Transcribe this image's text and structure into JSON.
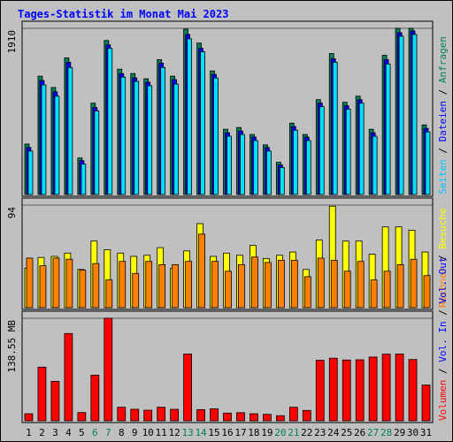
{
  "chart_data": {
    "type": "bar",
    "title": "Tages-Statistik im Monat Mai 2023",
    "categories": [
      "1",
      "2",
      "3",
      "4",
      "5",
      "6",
      "7",
      "8",
      "9",
      "10",
      "11",
      "12",
      "13",
      "14",
      "15",
      "16",
      "17",
      "18",
      "19",
      "20",
      "21",
      "22",
      "23",
      "24",
      "25",
      "26",
      "27",
      "28",
      "29",
      "30",
      "31"
    ],
    "weekend_days": [
      "6",
      "7",
      "13",
      "14",
      "20",
      "21",
      "27",
      "28"
    ],
    "panels": [
      {
        "id": "requests",
        "ytick_label": "1910",
        "ylim": [
          0,
          1910
        ],
        "right_labels": [
          {
            "text": "Anfragen",
            "color": "#00805c"
          },
          {
            "text": "Dateien",
            "color": "#0000ff"
          },
          {
            "text": "Seiten",
            "color": "#00c0ff"
          }
        ],
        "series": [
          {
            "name": "Anfragen",
            "color": "#00805c",
            "values": [
              580,
              1360,
              1230,
              1570,
              420,
              1050,
              1770,
              1440,
              1390,
              1330,
              1550,
              1360,
              1900,
              1740,
              1420,
              750,
              770,
              690,
              570,
              370,
              820,
              690,
              1090,
              1620,
              1060,
              1130,
              750,
              1600,
              1910,
              1910,
              800
            ]
          },
          {
            "name": "Dateien",
            "color": "#0000ff",
            "values": [
              560,
              1330,
              1200,
              1540,
              410,
              1020,
              1740,
              1410,
              1360,
              1310,
              1530,
              1340,
              1860,
              1700,
              1400,
              730,
              750,
              680,
              560,
              360,
              800,
              680,
              1070,
              1580,
              1040,
              1110,
              730,
              1570,
              1880,
              1900,
              780
            ]
          },
          {
            "name": "Seiten",
            "color": "#00e0ff",
            "values": [
              540,
              1300,
              1170,
              1500,
              390,
              1000,
              1720,
              1390,
              1340,
              1290,
              1500,
              1310,
              1830,
              1680,
              1380,
              710,
              730,
              660,
              540,
              350,
              780,
              660,
              1050,
              1560,
              1020,
              1090,
              710,
              1540,
              1860,
              1880,
              760
            ]
          }
        ]
      },
      {
        "id": "visits",
        "ytick_label": "94",
        "ylim": [
          0,
          94
        ],
        "right_labels": [
          {
            "text": "Besuche",
            "color": "#ffff00"
          },
          {
            "text": "Rechner",
            "color": "#ff8000"
          }
        ],
        "series": [
          {
            "name": "Besuche",
            "color": "#ffff00",
            "values": [
              36,
              46,
              47,
              50,
              35,
              61,
              53,
              50,
              47,
              48,
              55,
              36,
              52,
              77,
              47,
              50,
              48,
              57,
              45,
              48,
              51,
              35,
              62,
              93,
              61,
              61,
              49,
              74,
              74,
              71,
              51
            ]
          },
          {
            "name": "Rechner",
            "color": "#ff8000",
            "values": [
              47,
              40,
              47,
              46,
              36,
              42,
              27,
              44,
              33,
              44,
              41,
              41,
              44,
              69,
              44,
              35,
              41,
              48,
              43,
              45,
              45,
              30,
              47,
              45,
              35,
              44,
              27,
              35,
              41,
              46,
              31
            ]
          }
        ]
      },
      {
        "id": "volume",
        "ytick_label": "138.55 MB",
        "ylim": [
          0,
          138.55
        ],
        "right_labels": [
          {
            "text": "Vol. Out",
            "color": "#0000ff"
          },
          {
            "text": "Vol. In",
            "color": "#0000ff"
          },
          {
            "text": "Volumen",
            "color": "#ff0000"
          }
        ],
        "series": [
          {
            "name": "Volumen",
            "color": "#ff0000",
            "values": [
              9.5,
              72.5,
              53.3,
              117.9,
              11.1,
              61.7,
              138.6,
              18.3,
              15.6,
              14.3,
              18.3,
              15.5,
              90.2,
              15.1,
              16.2,
              10.4,
              11.0,
              9.5,
              8.7,
              6.9,
              18.3,
              14.0,
              81.8,
              84.6,
              82.1,
              82.4,
              86.1,
              90.0,
              90.2,
              82.8,
              48.3
            ]
          }
        ]
      }
    ]
  }
}
